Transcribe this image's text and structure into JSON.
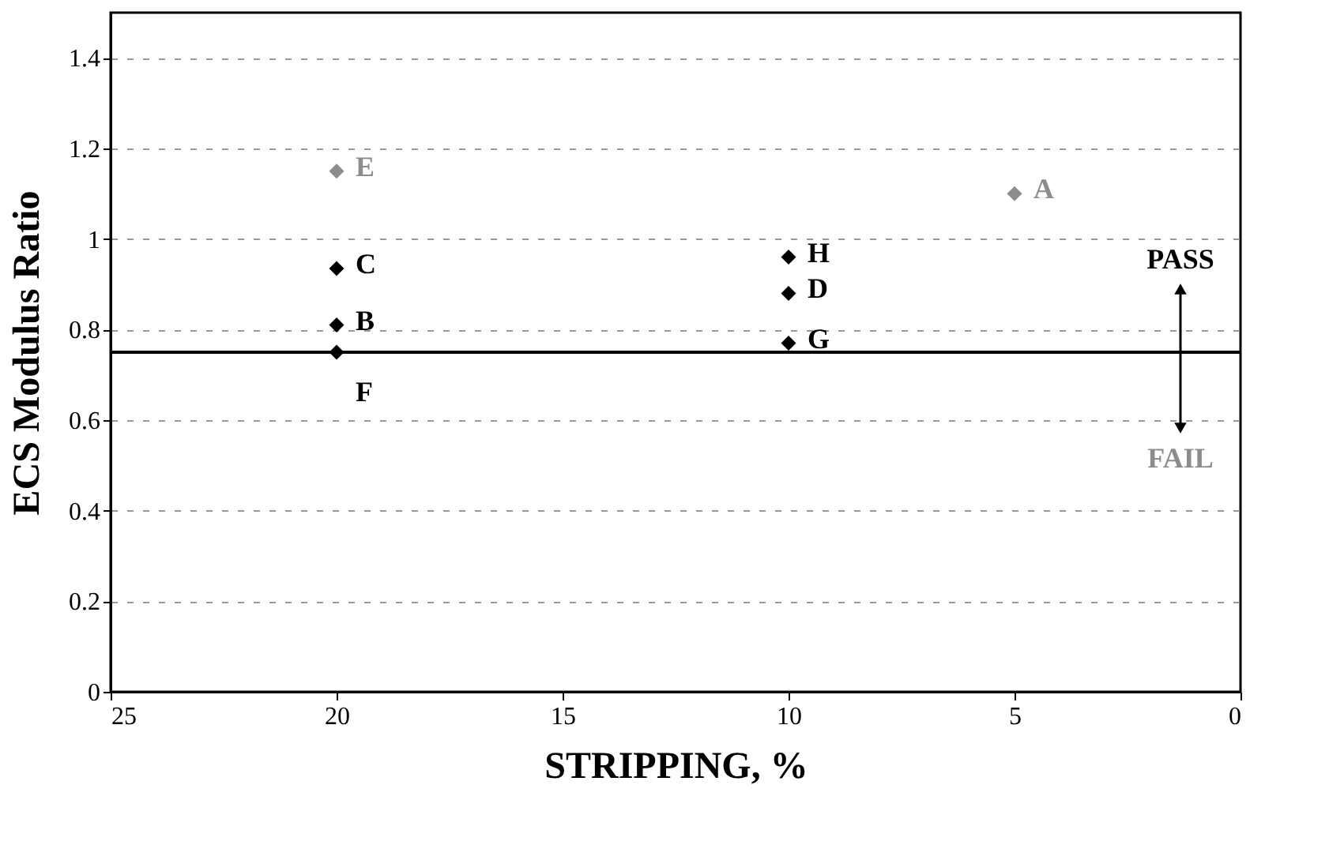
{
  "chart_data": {
    "type": "scatter",
    "xlabel": "STRIPPING, %",
    "ylabel": "ECS Modulus Ratio",
    "series": [
      {
        "color": "#000000",
        "x": [
          20,
          20,
          20,
          10,
          10,
          10
        ],
        "values": [
          0.935,
          0.81,
          0.75,
          0.96,
          0.88,
          0.77
        ]
      },
      {
        "color": "#8c8c8c",
        "x": [
          20,
          5
        ],
        "values": [
          1.15,
          1.1
        ]
      }
    ],
    "marker": "diamond",
    "xlim": [
      25,
      0
    ],
    "xticks": [
      25,
      20,
      15,
      10,
      5,
      0
    ],
    "ylim": [
      0,
      1.5
    ],
    "yticks": [
      0,
      0.2,
      0.4,
      0.6,
      0.8,
      1,
      1.2,
      1.4
    ],
    "grid": "y",
    "ref_lines": [
      {
        "axis": "y",
        "value": 0.75,
        "color": "#000000"
      }
    ],
    "annotations": [
      {
        "text": "E",
        "x": 20,
        "y": 1.15
      },
      {
        "text": "C",
        "x": 20,
        "y": 0.935
      },
      {
        "text": "B",
        "x": 20,
        "y": 0.81
      },
      {
        "text": "F",
        "x": 20,
        "y": 0.75
      },
      {
        "text": "H",
        "x": 10,
        "y": 0.96
      },
      {
        "text": "D",
        "x": 10,
        "y": 0.88
      },
      {
        "text": "G",
        "x": 10,
        "y": 0.77
      },
      {
        "text": "A",
        "x": 5,
        "y": 1.1
      },
      "PASS",
      "FAIL"
    ]
  }
}
